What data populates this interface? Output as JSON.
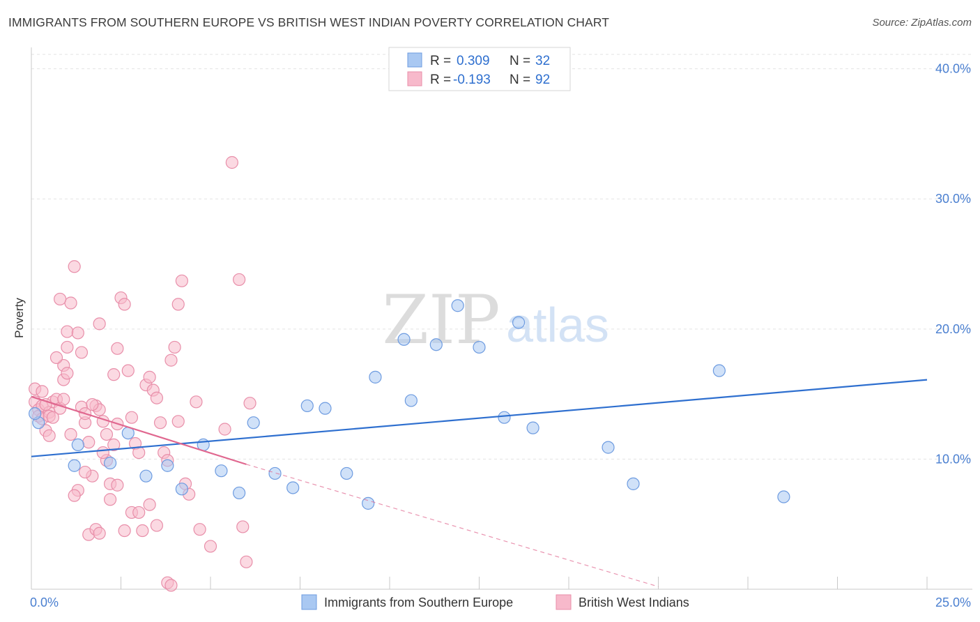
{
  "chart_data": {
    "type": "scatter",
    "title": "IMMIGRANTS FROM SOUTHERN EUROPE VS BRITISH WEST INDIAN POVERTY CORRELATION CHART",
    "source": "Source: ZipAtlas.com",
    "ylabel": "Poverty",
    "xlim": [
      0,
      25
    ],
    "ylim": [
      0,
      41
    ],
    "x_tick_labels": [
      "0.0%",
      "25.0%"
    ],
    "y_tick_labels": [
      {
        "value": 10,
        "label": "10.0%"
      },
      {
        "value": 20,
        "label": "20.0%"
      },
      {
        "value": 30,
        "label": "30.0%"
      },
      {
        "value": 40,
        "label": "40.0%"
      }
    ],
    "grid": true,
    "watermark": {
      "zip": "ZIP",
      "atlas": "atlas"
    },
    "legend_stats": [
      {
        "r_label": "R =",
        "r_value": "0.309",
        "n_label": "N =",
        "n_value": "32",
        "color": "#a9c8f2",
        "border": "#6d9be0"
      },
      {
        "r_label": "R =",
        "r_value": "-0.193",
        "n_label": "N =",
        "n_value": "92",
        "color": "#f7b9cb",
        "border": "#e88ea9"
      }
    ],
    "series": [
      {
        "name": "Immigrants from Southern Europe",
        "color": "#a9c8f2",
        "stroke": "#6d9be0",
        "trend_color": "#2e6fcf",
        "trend": {
          "x0": 0,
          "y0": 10.2,
          "x1": 25,
          "y1": 16.1
        },
        "points": [
          [
            0.2,
            12.8
          ],
          [
            1.3,
            11.1
          ],
          [
            1.2,
            9.5
          ],
          [
            2.2,
            9.7
          ],
          [
            2.7,
            12.0
          ],
          [
            3.2,
            8.7
          ],
          [
            3.8,
            9.5
          ],
          [
            4.2,
            7.7
          ],
          [
            4.8,
            11.1
          ],
          [
            5.3,
            9.1
          ],
          [
            5.8,
            7.4
          ],
          [
            6.2,
            12.8
          ],
          [
            6.8,
            8.9
          ],
          [
            7.3,
            7.8
          ],
          [
            7.7,
            14.1
          ],
          [
            8.2,
            13.9
          ],
          [
            8.8,
            8.9
          ],
          [
            9.4,
            6.6
          ],
          [
            9.6,
            16.3
          ],
          [
            10.4,
            19.2
          ],
          [
            10.6,
            14.5
          ],
          [
            11.3,
            18.8
          ],
          [
            11.9,
            21.8
          ],
          [
            12.5,
            18.6
          ],
          [
            13.2,
            13.2
          ],
          [
            13.6,
            20.5
          ],
          [
            14.0,
            12.4
          ],
          [
            16.1,
            10.9
          ],
          [
            16.8,
            8.1
          ],
          [
            19.2,
            16.8
          ],
          [
            21.0,
            7.1
          ],
          [
            0.1,
            13.5
          ]
        ]
      },
      {
        "name": "British West Indians",
        "color": "#f7b9cb",
        "stroke": "#e88ea9",
        "trend_color": "#e0678f",
        "trend": {
          "x0": 0,
          "y0": 14.8,
          "x1": 6.0,
          "y1": 9.6
        },
        "trend_dash": {
          "x0": 6.0,
          "y0": 9.6,
          "x1": 17.5,
          "y1": 0.2
        },
        "points": [
          [
            0.1,
            15.4
          ],
          [
            0.1,
            14.4
          ],
          [
            0.2,
            13.8
          ],
          [
            0.2,
            13.3
          ],
          [
            0.3,
            13.1
          ],
          [
            0.3,
            14.1
          ],
          [
            0.4,
            12.2
          ],
          [
            0.5,
            13.6
          ],
          [
            0.5,
            13.3
          ],
          [
            0.5,
            11.8
          ],
          [
            0.6,
            14.4
          ],
          [
            0.7,
            14.6
          ],
          [
            0.8,
            13.9
          ],
          [
            0.9,
            16.1
          ],
          [
            0.9,
            17.2
          ],
          [
            1.0,
            19.8
          ],
          [
            1.0,
            18.6
          ],
          [
            1.1,
            22.0
          ],
          [
            1.2,
            24.8
          ],
          [
            1.3,
            19.7
          ],
          [
            1.4,
            14.0
          ],
          [
            1.5,
            12.8
          ],
          [
            1.5,
            13.5
          ],
          [
            1.6,
            11.3
          ],
          [
            1.7,
            8.7
          ],
          [
            1.8,
            14.1
          ],
          [
            1.9,
            13.8
          ],
          [
            2.0,
            12.9
          ],
          [
            2.1,
            11.9
          ],
          [
            2.1,
            9.9
          ],
          [
            2.2,
            8.1
          ],
          [
            2.3,
            11.1
          ],
          [
            2.3,
            16.5
          ],
          [
            2.4,
            18.5
          ],
          [
            2.5,
            22.4
          ],
          [
            2.6,
            21.9
          ],
          [
            2.7,
            16.8
          ],
          [
            2.8,
            13.2
          ],
          [
            2.9,
            11.2
          ],
          [
            3.0,
            10.5
          ],
          [
            3.2,
            15.7
          ],
          [
            3.3,
            16.3
          ],
          [
            3.4,
            15.3
          ],
          [
            3.5,
            14.7
          ],
          [
            3.6,
            12.8
          ],
          [
            3.7,
            10.5
          ],
          [
            3.8,
            9.9
          ],
          [
            3.9,
            17.6
          ],
          [
            4.0,
            18.6
          ],
          [
            4.1,
            21.9
          ],
          [
            4.2,
            23.7
          ],
          [
            1.0,
            16.6
          ],
          [
            0.7,
            17.8
          ],
          [
            0.8,
            22.3
          ],
          [
            1.3,
            7.6
          ],
          [
            1.2,
            7.2
          ],
          [
            1.5,
            9.0
          ],
          [
            1.6,
            4.2
          ],
          [
            1.8,
            4.6
          ],
          [
            2.2,
            6.9
          ],
          [
            2.4,
            8.0
          ],
          [
            2.6,
            4.5
          ],
          [
            2.8,
            5.9
          ],
          [
            3.0,
            5.9
          ],
          [
            3.1,
            4.5
          ],
          [
            3.3,
            6.5
          ],
          [
            3.5,
            4.9
          ],
          [
            3.8,
            0.5
          ],
          [
            3.9,
            0.3
          ],
          [
            4.1,
            12.9
          ],
          [
            4.3,
            8.1
          ],
          [
            4.4,
            7.3
          ],
          [
            4.6,
            14.4
          ],
          [
            4.7,
            4.6
          ],
          [
            5.0,
            3.3
          ],
          [
            5.4,
            12.3
          ],
          [
            5.6,
            32.8
          ],
          [
            5.8,
            23.8
          ],
          [
            5.9,
            4.8
          ],
          [
            6.0,
            2.1
          ],
          [
            6.1,
            14.3
          ],
          [
            1.9,
            20.4
          ],
          [
            2.0,
            10.5
          ],
          [
            2.4,
            12.7
          ],
          [
            1.4,
            18.2
          ],
          [
            0.9,
            14.6
          ],
          [
            0.4,
            14.2
          ],
          [
            0.6,
            13.2
          ],
          [
            1.1,
            11.9
          ],
          [
            1.7,
            14.2
          ],
          [
            1.9,
            4.3
          ],
          [
            0.3,
            15.2
          ]
        ]
      }
    ]
  }
}
